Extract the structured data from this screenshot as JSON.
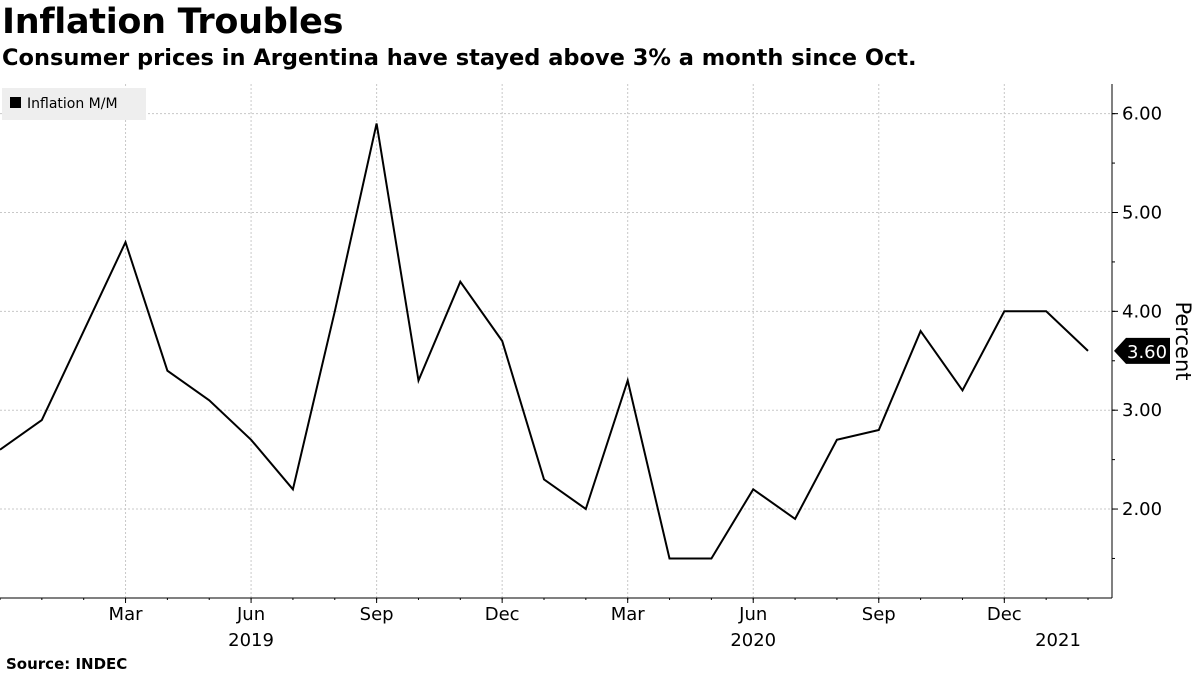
{
  "header": {
    "title": "Inflation Troubles",
    "subtitle": "Consumer prices in Argentina have stayed above 3% a month since Oct."
  },
  "footer": {
    "source": "Source: INDEC"
  },
  "chart_data": {
    "type": "line",
    "x": [
      "2018-12",
      "2019-01",
      "2019-02",
      "2019-03",
      "2019-04",
      "2019-05",
      "2019-06",
      "2019-07",
      "2019-08",
      "2019-09",
      "2019-10",
      "2019-11",
      "2019-12",
      "2020-01",
      "2020-02",
      "2020-03",
      "2020-04",
      "2020-05",
      "2020-06",
      "2020-07",
      "2020-08",
      "2020-09",
      "2020-10",
      "2020-11",
      "2020-12",
      "2021-01",
      "2021-02"
    ],
    "series": [
      {
        "name": "Inflation M/M",
        "color": "#000000",
        "values": [
          2.6,
          2.9,
          3.8,
          4.7,
          3.4,
          3.1,
          2.7,
          2.2,
          4.0,
          5.9,
          3.3,
          4.3,
          3.7,
          2.3,
          2.0,
          3.3,
          1.5,
          1.5,
          2.2,
          1.9,
          2.7,
          2.8,
          3.8,
          3.2,
          4.0,
          4.0,
          3.6
        ]
      }
    ],
    "xlabel": "",
    "ylabel": "Percent",
    "ylim": [
      1.1,
      6.3
    ],
    "y_ticks": [
      {
        "value": 2.0,
        "label": "2.00"
      },
      {
        "value": 3.0,
        "label": "3.00"
      },
      {
        "value": 4.0,
        "label": "4.00"
      },
      {
        "value": 5.0,
        "label": "5.00"
      },
      {
        "value": 6.0,
        "label": "6.00"
      }
    ],
    "x_ticks": [
      {
        "x": "2019-03",
        "label": "Mar",
        "year": ""
      },
      {
        "x": "2019-06",
        "label": "Jun",
        "year": "2019"
      },
      {
        "x": "2019-09",
        "label": "Sep",
        "year": ""
      },
      {
        "x": "2019-12",
        "label": "Dec",
        "year": ""
      },
      {
        "x": "2020-03",
        "label": "Mar",
        "year": ""
      },
      {
        "x": "2020-06",
        "label": "Jun",
        "year": "2020"
      },
      {
        "x": "2020-09",
        "label": "Sep",
        "year": ""
      },
      {
        "x": "2020-12",
        "label": "Dec",
        "year": ""
      },
      {
        "x": "2021-02",
        "label": "",
        "year": "2021"
      }
    ],
    "last_value_label": "3.60",
    "grid": true,
    "legend_position": "top-left"
  }
}
